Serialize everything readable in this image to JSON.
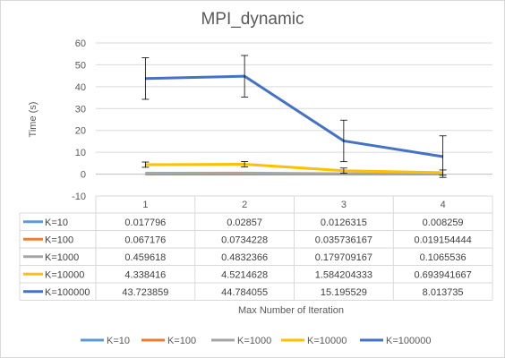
{
  "chart_data": {
    "type": "line",
    "title": "MPI_dynamic",
    "xlabel": "Max Number of Iteration",
    "ylabel": "Time (s)",
    "categories": [
      "1",
      "2",
      "3",
      "4"
    ],
    "ylim": [
      -10,
      60
    ],
    "yticks": [
      -10,
      0,
      10,
      20,
      30,
      40,
      50,
      60
    ],
    "grid": true,
    "legend_position": "bottom",
    "series": [
      {
        "name": "K=10",
        "color": "#5b9bd5",
        "values": [
          0.017796,
          0.02857,
          0.0126315,
          0.008259
        ],
        "labels": [
          "0.017796",
          "0.02857",
          "0.0126315",
          "0.008259"
        ],
        "errors": [
          0,
          0,
          0,
          0
        ]
      },
      {
        "name": "K=100",
        "color": "#ed7d31",
        "values": [
          0.067176,
          0.0734228,
          0.035736167,
          0.019154444
        ],
        "labels": [
          "0.067176",
          "0.0734228",
          "0.035736167",
          "0.019154444"
        ],
        "errors": [
          0,
          0,
          0,
          0
        ]
      },
      {
        "name": "K=1000",
        "color": "#a5a5a5",
        "values": [
          0.459618,
          0.4832366,
          0.179709167,
          0.1065536
        ],
        "labels": [
          "0.459618",
          "0.4832366",
          "0.179709167",
          "0.1065536"
        ],
        "errors": [
          0,
          0,
          0,
          0
        ]
      },
      {
        "name": "K=10000",
        "color": "#ffc000",
        "values": [
          4.338416,
          4.5214628,
          1.584204333,
          0.693941667
        ],
        "labels": [
          "4.338416",
          "4.5214628",
          "1.584204333",
          "0.693941667"
        ],
        "errors": [
          1.2,
          1.2,
          1.2,
          1.2
        ]
      },
      {
        "name": "K=100000",
        "color": "#4472c4",
        "values": [
          43.723859,
          44.784055,
          15.195529,
          8.013735
        ],
        "labels": [
          "43.723859",
          "44.784055",
          "15.195529",
          "8.013735"
        ],
        "errors": [
          9.5,
          9.5,
          9.5,
          9.5
        ]
      }
    ]
  }
}
